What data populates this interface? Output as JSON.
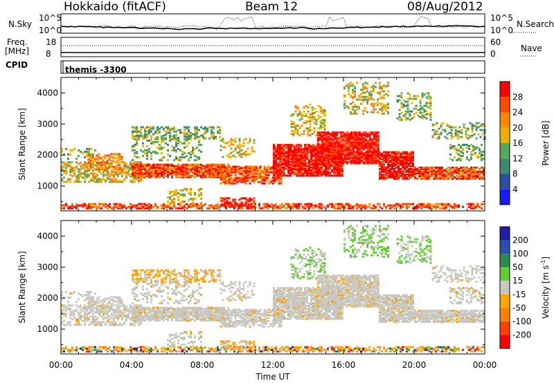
{
  "header": {
    "station": "Hokkaido (fitACF)",
    "beam": "Beam 12",
    "date": "08/Aug/2012"
  },
  "summary_labels": {
    "n_sky": "N.Sky",
    "n_sky_top": "10^5",
    "n_sky_bottom": "10^0",
    "n_search": "N.Search",
    "n_search_top": "10^5",
    "n_search_bottom": "10^0",
    "freq_line1": "Freq.",
    "freq_line2": "[MHz]",
    "freq_top": "18",
    "freq_bottom": "8",
    "nave": "Nave",
    "nave_top": "60",
    "nave_bottom": "0",
    "cpid": "CPID",
    "cpid_value": "themis -3300"
  },
  "colors": {
    "power": [
      "#1a1aff",
      "#2d4f9e",
      "#3f8a6e",
      "#55a85a",
      "#f0b000",
      "#ff8800",
      "#ff4a00",
      "#ff0000"
    ],
    "velocity": [
      "#2020a0",
      "#2a4fb0",
      "#2d8a4a",
      "#66cc33",
      "#c8c8c0",
      "#ffa500",
      "#ff8000",
      "#ff4000",
      "#ff0000"
    ],
    "ground_scatter": "#c8c8c0"
  },
  "chart_data": [
    {
      "type": "heatmap",
      "name": "power",
      "ylabel": "Slant Range [km]",
      "xlim_hours": [
        0,
        24
      ],
      "ylim": [
        200,
        4500
      ],
      "yticks": [
        "1000",
        "2000",
        "3000",
        "4000"
      ],
      "colorbar": {
        "label": "Power [dB]",
        "tick_labels": [
          "4",
          "8",
          "12",
          "16",
          "20",
          "24",
          "28"
        ]
      }
    },
    {
      "type": "heatmap",
      "name": "velocity",
      "ylabel": "Slant Range [km]",
      "xlabel": "Time UT",
      "xlim_hours": [
        0,
        24
      ],
      "ylim": [
        200,
        4500
      ],
      "yticks": [
        "1000",
        "2000",
        "3000",
        "4000"
      ],
      "xticks": [
        "00:00",
        "04:00",
        "08:00",
        "12:00",
        "16:00",
        "20:00",
        "00:00"
      ],
      "colorbar": {
        "label": "Velocity [m s",
        "label_sup": "-1",
        "label_end": "]",
        "tick_labels": [
          "200",
          "100",
          "50",
          "15",
          "-15",
          "-50",
          "-100",
          "-200"
        ]
      }
    }
  ]
}
